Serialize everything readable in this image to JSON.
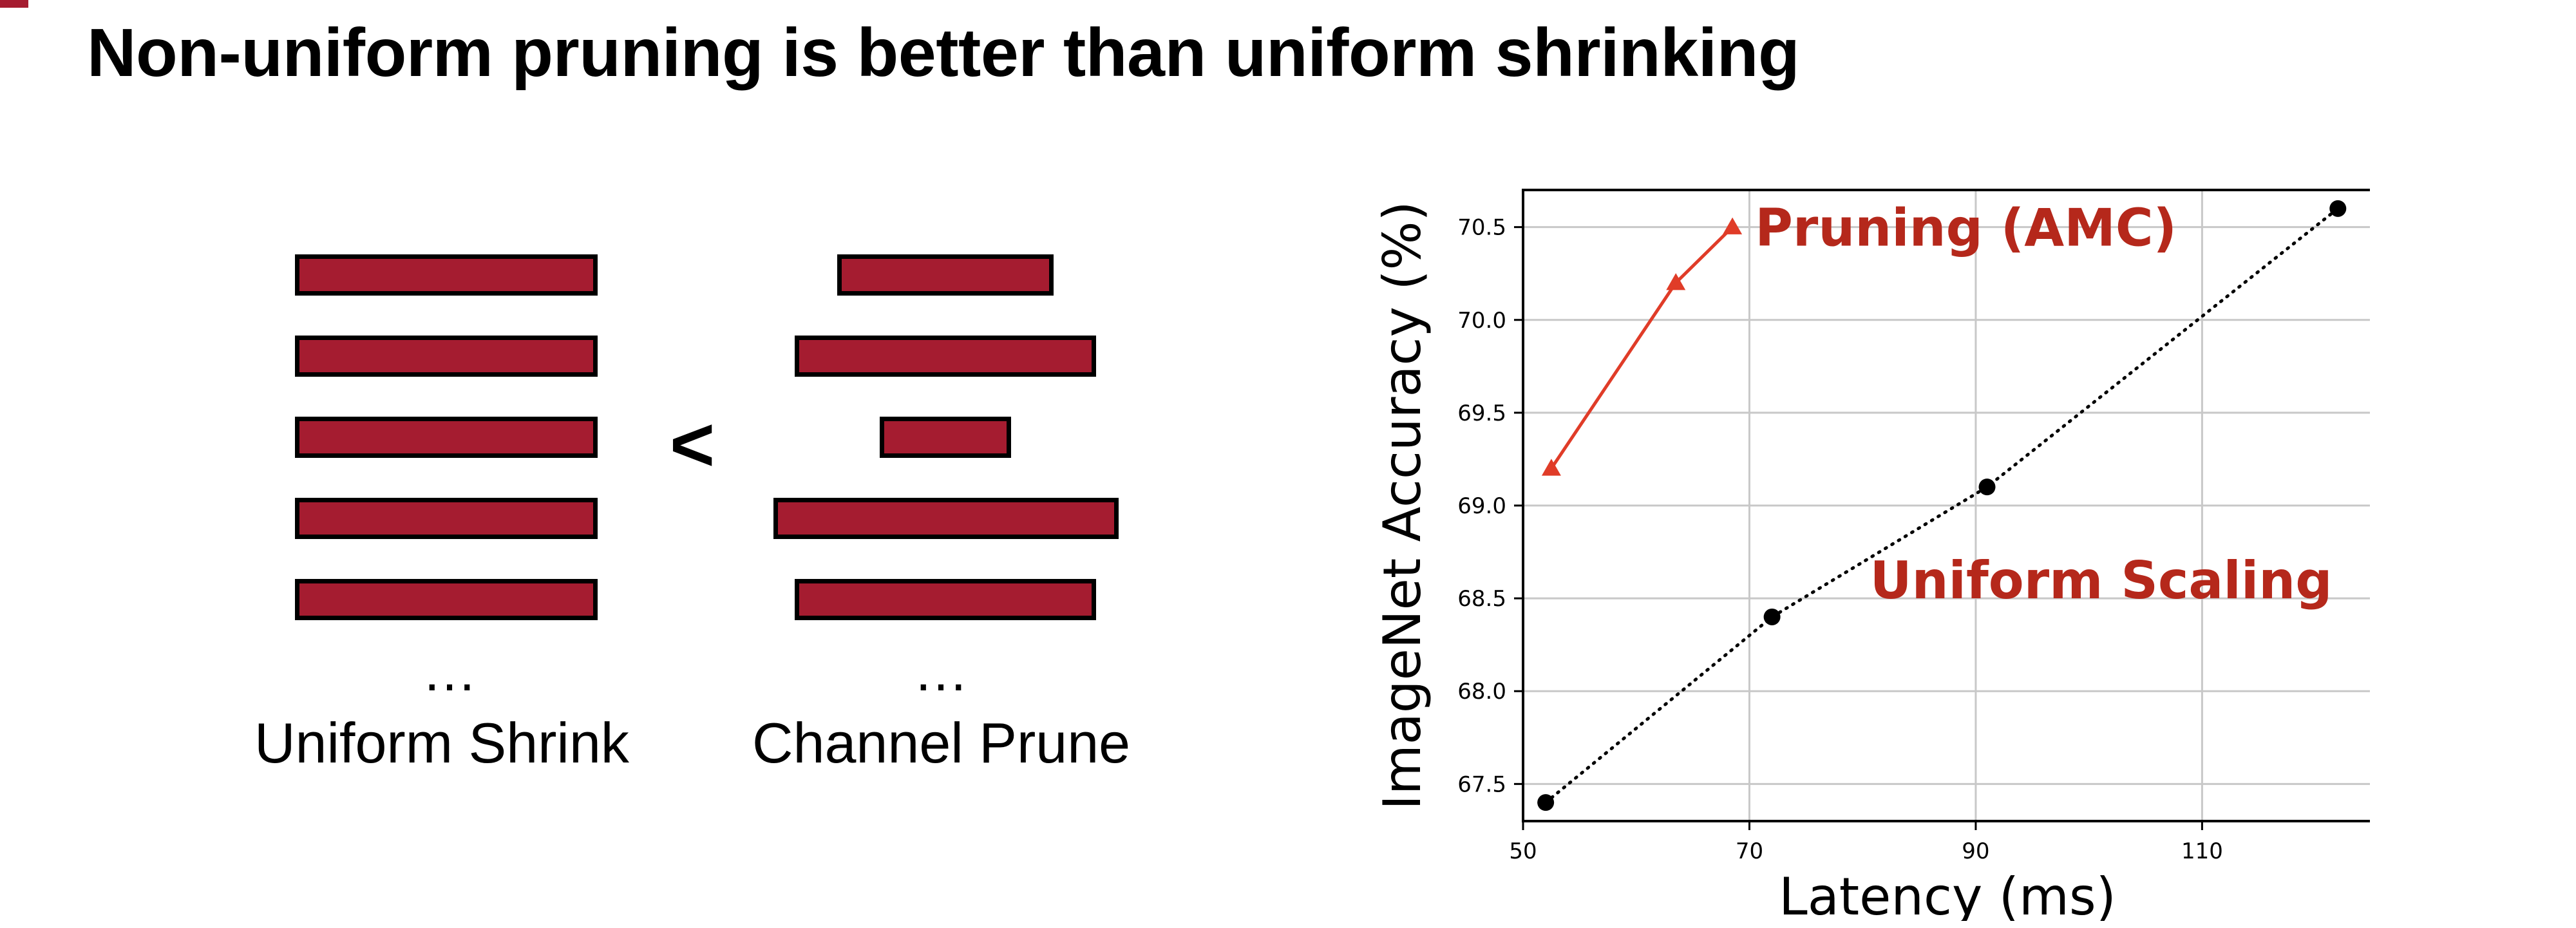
{
  "slide": {
    "title": "Non-uniform pruning is better than uniform shrinking",
    "accent_color": "#a51c30"
  },
  "illustration": {
    "uniform_caption": "Uniform Shrink",
    "prune_caption": "Channel Prune",
    "comparison_symbol": "<",
    "ellipsis": "…",
    "bar_color": "#a51c30"
  },
  "chart_data": {
    "type": "line",
    "xlabel": "Latency (ms)",
    "ylabel": "ImageNet Accuracy (%)",
    "xlim": [
      50,
      125
    ],
    "ylim": [
      67.3,
      70.7
    ],
    "xticks": [
      50,
      70,
      90,
      110
    ],
    "yticks": [
      67.5,
      68.0,
      68.5,
      69.0,
      69.5,
      70.0,
      70.5
    ],
    "grid": true,
    "series": [
      {
        "name": "Pruning (AMC)",
        "color": "#e03c28",
        "label_color": "#b5281b",
        "marker": "triangle",
        "line": "solid",
        "x": [
          52.5,
          63.5,
          68.5
        ],
        "y": [
          69.2,
          70.2,
          70.5
        ]
      },
      {
        "name": "Uniform Scaling",
        "color": "#000000",
        "label_color": "#b5281b",
        "marker": "circle",
        "line": "dotted",
        "x": [
          52,
          72,
          91,
          122
        ],
        "y": [
          67.4,
          68.4,
          69.1,
          70.6
        ]
      }
    ]
  }
}
